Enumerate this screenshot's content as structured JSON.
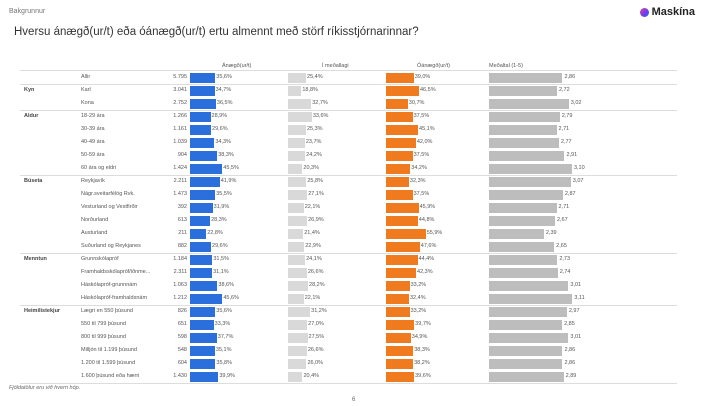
{
  "breadcrumb": "Bakgrunnur",
  "logo": "Maskína",
  "title": "Hversu ánægð(ur/t) eða óánægð(ur/t) ertu almennt með störf ríkisstjórnarinnar?",
  "footnote": "Fjöldatölur eru við hvern hóp.",
  "page_number": "6",
  "chart_data": {
    "type": "table",
    "columns": [
      "Ánægð(ur/t)",
      "Í meðallagi",
      "Óánægð(ur/t)",
      "Meðaltal (1-5)"
    ],
    "colors": {
      "satisfied": "#2b6fdc",
      "neutral": "#d9d9d9",
      "dissatisfied": "#f07a1e",
      "mean": "#bdbdbd"
    },
    "mean_scale": [
      1,
      5
    ],
    "rows": [
      {
        "group": "",
        "label": "Allir",
        "n": "5.795",
        "sat": "35,6%",
        "neu": "25,4%",
        "dis": "39,0%",
        "mean": "2,86"
      },
      {
        "group": "Kyn",
        "label": "Karl",
        "n": "3.041",
        "sat": "34,7%",
        "neu": "18,8%",
        "dis": "46,5%",
        "mean": "2,72"
      },
      {
        "group": "",
        "label": "Kona",
        "n": "2.752",
        "sat": "36,5%",
        "neu": "32,7%",
        "dis": "30,7%",
        "mean": "3,02"
      },
      {
        "group": "Aldur",
        "label": "18-29 ára",
        "n": "1.266",
        "sat": "28,9%",
        "neu": "33,6%",
        "dis": "37,5%",
        "mean": "2,79"
      },
      {
        "group": "",
        "label": "30-39 ára",
        "n": "1.161",
        "sat": "29,6%",
        "neu": "25,3%",
        "dis": "45,1%",
        "mean": "2,71"
      },
      {
        "group": "",
        "label": "40-49 ára",
        "n": "1.039",
        "sat": "34,3%",
        "neu": "23,7%",
        "dis": "42,0%",
        "mean": "2,77"
      },
      {
        "group": "",
        "label": "50-59 ára",
        "n": "904",
        "sat": "38,3%",
        "neu": "24,2%",
        "dis": "37,5%",
        "mean": "2,91"
      },
      {
        "group": "",
        "label": "60 ára og eldri",
        "n": "1.424",
        "sat": "45,5%",
        "neu": "20,3%",
        "dis": "34,2%",
        "mean": "3,10"
      },
      {
        "group": "Búseta",
        "label": "Reykjavík",
        "n": "2.211",
        "sat": "41,9%",
        "neu": "25,8%",
        "dis": "32,3%",
        "mean": "3,07"
      },
      {
        "group": "",
        "label": "Nágr.sveitarfélög Rvk.",
        "n": "1.473",
        "sat": "35,5%",
        "neu": "27,1%",
        "dis": "37,5%",
        "mean": "2,87"
      },
      {
        "group": "",
        "label": "Vesturland og Vestfirðir",
        "n": "392",
        "sat": "31,9%",
        "neu": "22,1%",
        "dis": "45,9%",
        "mean": "2,71"
      },
      {
        "group": "",
        "label": "Norðurland",
        "n": "613",
        "sat": "28,3%",
        "neu": "26,9%",
        "dis": "44,8%",
        "mean": "2,67"
      },
      {
        "group": "",
        "label": "Austurland",
        "n": "211",
        "sat": "22,8%",
        "neu": "21,4%",
        "dis": "55,9%",
        "mean": "2,39"
      },
      {
        "group": "",
        "label": "Suðurland og Reykjanes",
        "n": "882",
        "sat": "29,6%",
        "neu": "22,9%",
        "dis": "47,6%",
        "mean": "2,65"
      },
      {
        "group": "Menntun",
        "label": "Grunnskólapróf",
        "n": "1.184",
        "sat": "31,5%",
        "neu": "24,1%",
        "dis": "44,4%",
        "mean": "2,73"
      },
      {
        "group": "",
        "label": "Framhaldsskólapróf/iðnme...",
        "n": "2.311",
        "sat": "31,1%",
        "neu": "26,6%",
        "dis": "42,3%",
        "mean": "2,74"
      },
      {
        "group": "",
        "label": "Háskólapróf-grunnnám",
        "n": "1.063",
        "sat": "38,6%",
        "neu": "28,2%",
        "dis": "33,2%",
        "mean": "3,01"
      },
      {
        "group": "",
        "label": "Háskólapróf-framhaldsnám",
        "n": "1.212",
        "sat": "45,6%",
        "neu": "22,1%",
        "dis": "32,4%",
        "mean": "3,11"
      },
      {
        "group": "Heimilistekjur",
        "label": "Lægri en 550 þúsund",
        "n": "826",
        "sat": "35,6%",
        "neu": "31,2%",
        "dis": "33,2%",
        "mean": "2,97"
      },
      {
        "group": "",
        "label": "550 til 799 þúsund",
        "n": "651",
        "sat": "33,3%",
        "neu": "27,0%",
        "dis": "39,7%",
        "mean": "2,85"
      },
      {
        "group": "",
        "label": "800 til 999 þúsund",
        "n": "598",
        "sat": "37,7%",
        "neu": "27,5%",
        "dis": "34,9%",
        "mean": "3,01"
      },
      {
        "group": "",
        "label": "Milljón til 1.199 þúsund",
        "n": "548",
        "sat": "35,1%",
        "neu": "26,6%",
        "dis": "38,3%",
        "mean": "2,86"
      },
      {
        "group": "",
        "label": "1.200 til 1.599 þúsund",
        "n": "604",
        "sat": "35,8%",
        "neu": "26,0%",
        "dis": "38,2%",
        "mean": "2,86"
      },
      {
        "group": "",
        "label": "1.600 þúsund eða hærri",
        "n": "1.430",
        "sat": "39,9%",
        "neu": "20,4%",
        "dis": "39,6%",
        "mean": "2,89"
      }
    ]
  }
}
